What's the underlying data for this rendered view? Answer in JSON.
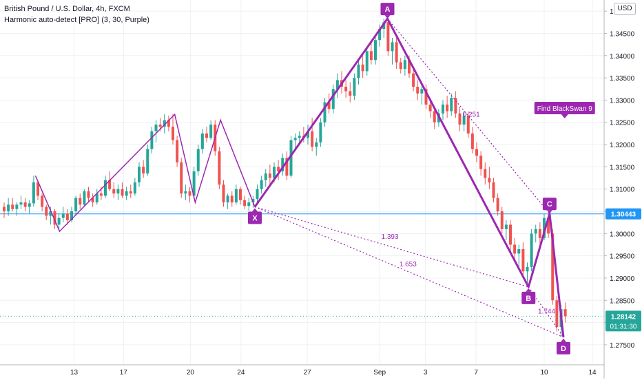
{
  "header": {
    "title": "British Pound / U.S. Dollar, 4h, FXCM",
    "indicator": "Harmonic auto-detect [PRO] (3, 30, Purple)",
    "currency_button": "USD"
  },
  "colors": {
    "up": "#26a69a",
    "down": "#ef5350",
    "pattern": "#9c27b0",
    "price_line": "#2196f3",
    "axis_text": "#131722",
    "grid": "#eef0f3"
  },
  "chart_data": {
    "type": "candlestick",
    "y_axis": {
      "range": [
        1.2705,
        1.3525
      ],
      "ticks": [
        "1.27500",
        "1.28000",
        "1.28500",
        "1.29000",
        "1.29500",
        "1.30000",
        "1.30500",
        "1.31000",
        "1.31500",
        "1.32000",
        "1.32500",
        "1.33000",
        "1.33500",
        "1.34000",
        "1.34500",
        "1.35000"
      ],
      "position": "right"
    },
    "x_axis": {
      "range": [
        0,
        100
      ],
      "ticks": [
        {
          "label": "13",
          "x": 11.6
        },
        {
          "label": "17",
          "x": 19.8
        },
        {
          "label": "20",
          "x": 30.9
        },
        {
          "label": "24",
          "x": 39.3
        },
        {
          "label": "27",
          "x": 50.3
        },
        {
          "label": "Sep",
          "x": 62.3
        },
        {
          "label": "3",
          "x": 69.9
        },
        {
          "label": "7",
          "x": 78.3
        },
        {
          "label": "10",
          "x": 89.6
        },
        {
          "label": "14",
          "x": 97.6
        }
      ]
    },
    "grid": true,
    "current_price": {
      "value": 1.28142,
      "label": "1.28142",
      "countdown": "01:31:30"
    },
    "horizontal_line": {
      "value": 1.30443,
      "label": "1.30443"
    },
    "zigzag": [
      [
        5.2,
        1.313
      ],
      [
        9.2,
        1.3005
      ],
      [
        28.3,
        1.3268
      ],
      [
        31.7,
        1.307
      ],
      [
        35.9,
        1.3255
      ],
      [
        41.6,
        1.306
      ]
    ],
    "pattern_points": [
      {
        "label": "X",
        "x": 41.6,
        "y": 1.306
      },
      {
        "label": "A",
        "x": 63.6,
        "y": 1.3483
      },
      {
        "label": "B",
        "x": 87.0,
        "y": 1.288
      },
      {
        "label": "C",
        "x": 90.5,
        "y": 1.3045
      },
      {
        "label": "D",
        "x": 92.8,
        "y": 1.2767
      }
    ],
    "ratio_labels": [
      {
        "label": "0.251",
        "x": 77.5,
        "y": 1.3263
      },
      {
        "label": "1.393",
        "x": 64.0,
        "y": 1.2988
      },
      {
        "label": "1.653",
        "x": 67.0,
        "y": 1.2926
      },
      {
        "label": "1.744",
        "x": 90.0,
        "y": 1.282
      }
    ],
    "annotation": {
      "text": "Find BlackSwan 9",
      "x": 93.0,
      "y": 1.3265
    },
    "candles": [
      [
        0.0,
        1.306,
        1.307,
        1.3035,
        1.305
      ],
      [
        0.7,
        1.305,
        1.308,
        1.304,
        1.3065
      ],
      [
        1.4,
        1.3065,
        1.308,
        1.305,
        1.3055
      ],
      [
        2.1,
        1.3055,
        1.307,
        1.304,
        1.3065
      ],
      [
        2.8,
        1.3065,
        1.3085,
        1.3055,
        1.307
      ],
      [
        3.5,
        1.307,
        1.308,
        1.305,
        1.306
      ],
      [
        4.2,
        1.306,
        1.3075,
        1.3045,
        1.3068
      ],
      [
        4.9,
        1.3068,
        1.313,
        1.306,
        1.3115
      ],
      [
        5.6,
        1.3115,
        1.312,
        1.3075,
        1.3085
      ],
      [
        6.3,
        1.3085,
        1.309,
        1.305,
        1.306
      ],
      [
        7.0,
        1.306,
        1.3065,
        1.303,
        1.304
      ],
      [
        7.7,
        1.304,
        1.306,
        1.302,
        1.305
      ],
      [
        8.4,
        1.305,
        1.3055,
        1.301,
        1.302
      ],
      [
        9.1,
        1.302,
        1.3045,
        1.3005,
        1.3035
      ],
      [
        9.8,
        1.3035,
        1.306,
        1.3025,
        1.3045
      ],
      [
        10.5,
        1.3045,
        1.3055,
        1.302,
        1.303
      ],
      [
        11.2,
        1.303,
        1.306,
        1.3025,
        1.305
      ],
      [
        11.9,
        1.305,
        1.3085,
        1.304,
        1.308
      ],
      [
        12.6,
        1.308,
        1.309,
        1.3055,
        1.3065
      ],
      [
        13.3,
        1.3065,
        1.31,
        1.306,
        1.3095
      ],
      [
        14.0,
        1.3095,
        1.3105,
        1.307,
        1.308
      ],
      [
        14.7,
        1.308,
        1.309,
        1.306,
        1.307
      ],
      [
        15.4,
        1.307,
        1.31,
        1.3065,
        1.309
      ],
      [
        16.1,
        1.309,
        1.3105,
        1.3075,
        1.3085
      ],
      [
        16.8,
        1.3085,
        1.313,
        1.308,
        1.312
      ],
      [
        17.5,
        1.312,
        1.314,
        1.3095,
        1.31
      ],
      [
        18.2,
        1.31,
        1.3115,
        1.308,
        1.309
      ],
      [
        18.9,
        1.309,
        1.311,
        1.3075,
        1.31
      ],
      [
        19.6,
        1.31,
        1.3115,
        1.308,
        1.3085
      ],
      [
        20.3,
        1.3085,
        1.3105,
        1.3075,
        1.3095
      ],
      [
        21.0,
        1.3095,
        1.311,
        1.308,
        1.309
      ],
      [
        21.7,
        1.309,
        1.3125,
        1.3085,
        1.3115
      ],
      [
        22.4,
        1.3115,
        1.316,
        1.3105,
        1.315
      ],
      [
        23.1,
        1.315,
        1.3165,
        1.3125,
        1.3135
      ],
      [
        23.8,
        1.3135,
        1.32,
        1.313,
        1.319
      ],
      [
        24.5,
        1.319,
        1.324,
        1.318,
        1.323
      ],
      [
        25.2,
        1.323,
        1.3255,
        1.3205,
        1.3245
      ],
      [
        25.9,
        1.3245,
        1.326,
        1.323,
        1.324
      ],
      [
        26.6,
        1.324,
        1.3268,
        1.3225,
        1.3255
      ],
      [
        27.3,
        1.3255,
        1.3265,
        1.323,
        1.324
      ],
      [
        28.0,
        1.324,
        1.3268,
        1.32,
        1.321
      ],
      [
        28.7,
        1.321,
        1.322,
        1.315,
        1.316
      ],
      [
        29.4,
        1.316,
        1.317,
        1.308,
        1.309
      ],
      [
        30.1,
        1.309,
        1.311,
        1.3075,
        1.3095
      ],
      [
        30.8,
        1.3095,
        1.3105,
        1.307,
        1.3085
      ],
      [
        31.5,
        1.3085,
        1.315,
        1.3078,
        1.314
      ],
      [
        32.2,
        1.314,
        1.32,
        1.313,
        1.319
      ],
      [
        32.9,
        1.319,
        1.3235,
        1.318,
        1.3225
      ],
      [
        33.6,
        1.3225,
        1.324,
        1.3205,
        1.3215
      ],
      [
        34.3,
        1.3215,
        1.3255,
        1.321,
        1.3245
      ],
      [
        35.0,
        1.3245,
        1.3255,
        1.3175,
        1.3185
      ],
      [
        35.7,
        1.3185,
        1.3195,
        1.31,
        1.311
      ],
      [
        36.4,
        1.311,
        1.312,
        1.306,
        1.307
      ],
      [
        37.1,
        1.307,
        1.309,
        1.3055,
        1.3085
      ],
      [
        37.8,
        1.3085,
        1.3095,
        1.306,
        1.307
      ],
      [
        38.5,
        1.307,
        1.311,
        1.3065,
        1.31
      ],
      [
        39.2,
        1.31,
        1.3105,
        1.3065,
        1.3075
      ],
      [
        39.9,
        1.3075,
        1.3085,
        1.3055,
        1.3062
      ],
      [
        40.6,
        1.3062,
        1.308,
        1.305,
        1.307
      ],
      [
        41.3,
        1.307,
        1.3085,
        1.3058,
        1.3078
      ],
      [
        42.0,
        1.3078,
        1.311,
        1.307,
        1.31
      ],
      [
        42.7,
        1.31,
        1.313,
        1.309,
        1.312
      ],
      [
        43.4,
        1.312,
        1.3145,
        1.3105,
        1.3135
      ],
      [
        44.1,
        1.3135,
        1.3155,
        1.311,
        1.3125
      ],
      [
        44.8,
        1.3125,
        1.316,
        1.3115,
        1.315
      ],
      [
        45.5,
        1.315,
        1.3165,
        1.312,
        1.314
      ],
      [
        46.2,
        1.314,
        1.318,
        1.313,
        1.317
      ],
      [
        46.9,
        1.317,
        1.3185,
        1.312,
        1.313
      ],
      [
        47.6,
        1.313,
        1.322,
        1.3125,
        1.321
      ],
      [
        48.3,
        1.321,
        1.3225,
        1.319,
        1.3215
      ],
      [
        49.0,
        1.3215,
        1.323,
        1.32,
        1.322
      ],
      [
        49.7,
        1.322,
        1.324,
        1.3205,
        1.3215
      ],
      [
        50.4,
        1.3215,
        1.3245,
        1.32,
        1.323
      ],
      [
        51.1,
        1.323,
        1.326,
        1.3185,
        1.3195
      ],
      [
        51.8,
        1.3195,
        1.3215,
        1.3175,
        1.3205
      ],
      [
        52.5,
        1.3205,
        1.326,
        1.3195,
        1.325
      ],
      [
        53.2,
        1.325,
        1.3305,
        1.324,
        1.3295
      ],
      [
        53.9,
        1.3295,
        1.3315,
        1.327,
        1.328
      ],
      [
        54.6,
        1.328,
        1.3335,
        1.327,
        1.3325
      ],
      [
        55.3,
        1.3325,
        1.336,
        1.3305,
        1.3345
      ],
      [
        56.0,
        1.3345,
        1.3365,
        1.3315,
        1.333
      ],
      [
        56.7,
        1.333,
        1.3345,
        1.3305,
        1.332
      ],
      [
        57.4,
        1.332,
        1.334,
        1.3295,
        1.331
      ],
      [
        58.1,
        1.331,
        1.336,
        1.33,
        1.335
      ],
      [
        58.8,
        1.335,
        1.339,
        1.3335,
        1.338
      ],
      [
        59.5,
        1.338,
        1.34,
        1.335,
        1.3365
      ],
      [
        60.2,
        1.3365,
        1.342,
        1.3355,
        1.341
      ],
      [
        60.9,
        1.341,
        1.343,
        1.338,
        1.339
      ],
      [
        61.6,
        1.339,
        1.3445,
        1.338,
        1.3435
      ],
      [
        62.3,
        1.3435,
        1.347,
        1.342,
        1.346
      ],
      [
        63.0,
        1.346,
        1.3483,
        1.344,
        1.3475
      ],
      [
        63.7,
        1.3475,
        1.348,
        1.34,
        1.341
      ],
      [
        64.4,
        1.341,
        1.344,
        1.338,
        1.343
      ],
      [
        65.1,
        1.343,
        1.344,
        1.337,
        1.3385
      ],
      [
        65.8,
        1.3385,
        1.3395,
        1.336,
        1.337
      ],
      [
        66.5,
        1.337,
        1.34,
        1.3355,
        1.339
      ],
      [
        67.2,
        1.339,
        1.34,
        1.335,
        1.336
      ],
      [
        67.9,
        1.336,
        1.337,
        1.332,
        1.333
      ],
      [
        68.6,
        1.333,
        1.3345,
        1.33,
        1.3315
      ],
      [
        69.3,
        1.3315,
        1.3335,
        1.329,
        1.3325
      ],
      [
        70.0,
        1.3325,
        1.3335,
        1.328,
        1.329
      ],
      [
        70.7,
        1.329,
        1.3305,
        1.326,
        1.3275
      ],
      [
        71.4,
        1.3275,
        1.3285,
        1.3235,
        1.325
      ],
      [
        72.1,
        1.325,
        1.328,
        1.324,
        1.327
      ],
      [
        72.8,
        1.327,
        1.33,
        1.3255,
        1.329
      ],
      [
        73.5,
        1.329,
        1.331,
        1.326,
        1.3275
      ],
      [
        74.2,
        1.3275,
        1.3315,
        1.3265,
        1.3305
      ],
      [
        74.9,
        1.3305,
        1.332,
        1.326,
        1.327
      ],
      [
        75.6,
        1.327,
        1.3285,
        1.323,
        1.3245
      ],
      [
        76.3,
        1.3245,
        1.3275,
        1.323,
        1.3265
      ],
      [
        77.0,
        1.3265,
        1.3275,
        1.3215,
        1.3225
      ],
      [
        77.7,
        1.3225,
        1.324,
        1.318,
        1.319
      ],
      [
        78.4,
        1.319,
        1.3205,
        1.316,
        1.3175
      ],
      [
        79.1,
        1.3175,
        1.3185,
        1.313,
        1.3145
      ],
      [
        79.8,
        1.3145,
        1.316,
        1.311,
        1.3125
      ],
      [
        80.5,
        1.3125,
        1.315,
        1.31,
        1.3115
      ],
      [
        81.2,
        1.3115,
        1.3125,
        1.307,
        1.308
      ],
      [
        81.9,
        1.308,
        1.309,
        1.304,
        1.305
      ],
      [
        82.6,
        1.305,
        1.306,
        1.3,
        1.301
      ],
      [
        83.3,
        1.301,
        1.303,
        1.2985,
        1.302
      ],
      [
        84.0,
        1.302,
        1.303,
        1.296,
        1.2975
      ],
      [
        84.7,
        1.2975,
        1.299,
        1.294,
        1.2955
      ],
      [
        85.4,
        1.2955,
        1.2975,
        1.292,
        1.2965
      ],
      [
        86.1,
        1.2965,
        1.298,
        1.29,
        1.2915
      ],
      [
        86.8,
        1.2915,
        1.2935,
        1.288,
        1.2925
      ],
      [
        87.5,
        1.2925,
        1.301,
        1.2915,
        1.3
      ],
      [
        88.2,
        1.3,
        1.302,
        1.298,
        1.301
      ],
      [
        88.9,
        1.301,
        1.3025,
        1.2975,
        1.299
      ],
      [
        89.6,
        1.299,
        1.3045,
        1.2985,
        1.3035
      ],
      [
        90.3,
        1.3035,
        1.3045,
        1.299,
        1.3
      ],
      [
        91.0,
        1.3,
        1.301,
        1.284,
        1.285
      ],
      [
        91.7,
        1.285,
        1.286,
        1.278,
        1.279
      ],
      [
        92.4,
        1.279,
        1.284,
        1.2767,
        1.283
      ],
      [
        93.1,
        1.283,
        1.2845,
        1.28,
        1.2814
      ]
    ]
  }
}
